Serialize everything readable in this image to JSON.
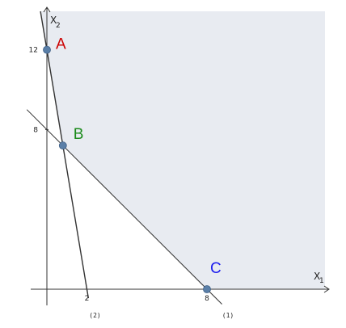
{
  "axes": {
    "x_label": "X",
    "x_sub": "1",
    "y_label": "X",
    "y_sub": "2"
  },
  "ticks": {
    "x": [
      {
        "value": 2,
        "label": "2"
      },
      {
        "value": 8,
        "label": "8"
      }
    ],
    "y": [
      {
        "value": 8,
        "label": "8"
      },
      {
        "value": 12,
        "label": "12"
      }
    ]
  },
  "constraint_lines": [
    {
      "id": "1",
      "label": "(1)",
      "x_intercept": 8,
      "y_intercept": 8
    },
    {
      "id": "2",
      "label": "(2)",
      "x_intercept": 2,
      "y_intercept": 12
    }
  ],
  "points": [
    {
      "name": "A",
      "x": 0,
      "y": 12,
      "color": "#cc0000"
    },
    {
      "name": "B",
      "x": 0.8,
      "y": 7.2,
      "color": "#1a8a1a"
    },
    {
      "name": "C",
      "x": 8,
      "y": 0,
      "color": "#1a1aee"
    }
  ],
  "colors": {
    "feasible_region": "#e8ebf1",
    "point_fill": "#5a7fa8",
    "axis": "#333333",
    "line": "#333333"
  }
}
